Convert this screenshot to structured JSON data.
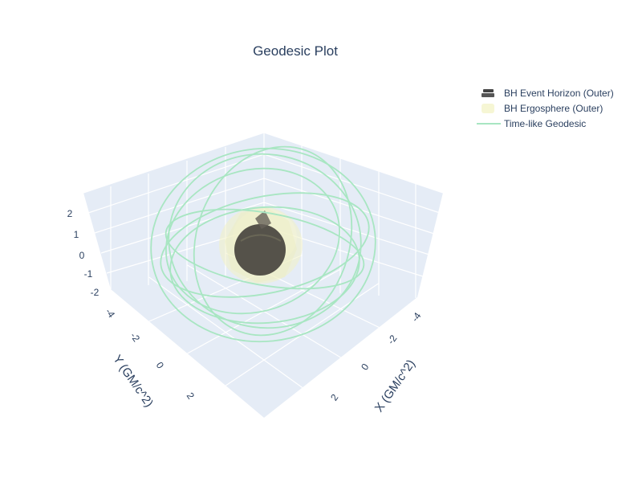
{
  "chart_data": {
    "type": "scatter3d",
    "title": "Geodesic Plot",
    "xlabel": "X (GM/c^2)",
    "ylabel": "Y (GM/c^2)",
    "zlabel": "",
    "x_ticks": [
      "-4",
      "-2",
      "0",
      "2"
    ],
    "y_ticks": [
      "-4",
      "-2",
      "0",
      "2"
    ],
    "z_ticks": [
      "2",
      "1",
      "0",
      "-1",
      "-2"
    ],
    "legend_placement": "top-right",
    "series": [
      {
        "name": "BH Event Horizon (Outer)",
        "kind": "surface",
        "color": "#55524a"
      },
      {
        "name": "BH Ergosphere (Outer)",
        "kind": "surface",
        "color": "#f2f2c4"
      },
      {
        "name": "Time-like Geodesic",
        "kind": "line",
        "color": "#a8e6c2"
      }
    ]
  },
  "colors": {
    "scene_background": "#e5ecf6",
    "grid": "#ffffff",
    "geodesic": "#a8e6c2",
    "horizon": "#55524a",
    "ergosphere": "#f2f2c4"
  }
}
